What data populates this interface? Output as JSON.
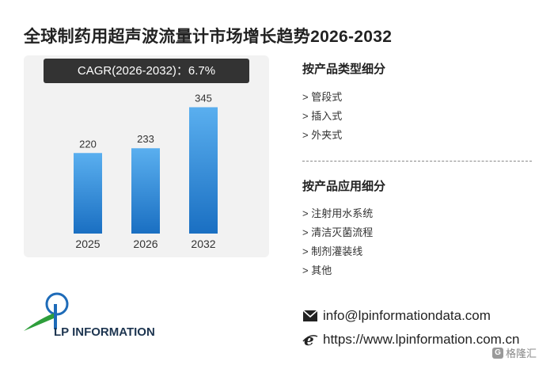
{
  "title": "全球制药用超声波流量计市场增长趋势2026-2032",
  "cagr_label": "CAGR(2026-2032)：6.7%",
  "chart_data": {
    "type": "bar",
    "categories": [
      "2025",
      "2026",
      "2032"
    ],
    "values": [
      220,
      233,
      345
    ],
    "ylim": [
      0,
      400
    ],
    "grid": false,
    "bar_color_top": "#5aafef",
    "bar_color_bottom": "#1a6fc2"
  },
  "type_section": {
    "title": "按产品类型细分",
    "items": [
      "> 管段式",
      "> 插入式",
      "> 外夹式"
    ]
  },
  "application_section": {
    "title": "按产品应用细分",
    "items": [
      "> 注射用水系统",
      "> 清洁灭菌流程",
      "> 制剂灌装线",
      "> 其他"
    ]
  },
  "contact": {
    "email": "info@lpinformationdata.com",
    "website": "https://www.lpinformation.com.cn",
    "email_icon": "envelope-icon",
    "web_icon": "browser-e-icon"
  },
  "logo": {
    "text": "LP INFORMATION",
    "color_green": "#2e9e3b",
    "color_blue": "#1e6bb8",
    "color_dark": "#1d3550"
  },
  "badge": {
    "text": "格隆汇",
    "icon": "g-logo-icon"
  }
}
